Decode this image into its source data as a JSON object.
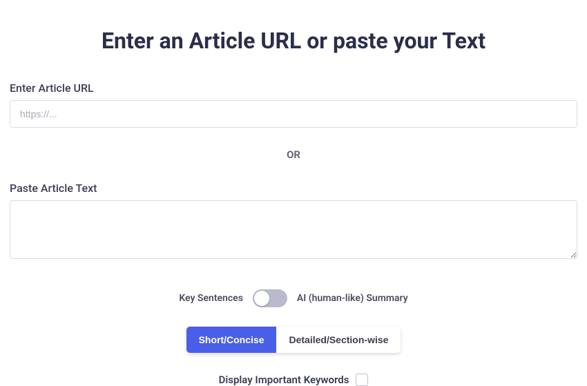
{
  "heading": "Enter an Article URL or paste your Text",
  "url_field": {
    "label": "Enter Article URL",
    "placeholder": "https://...",
    "value": ""
  },
  "divider_text": "OR",
  "text_field": {
    "label": "Paste Article Text",
    "value": ""
  },
  "toggle": {
    "left_label": "Key Sentences",
    "right_label": "AI (human-like) Summary",
    "state": "left"
  },
  "segment": {
    "options": [
      "Short/Concise",
      "Detailed/Section-wise"
    ],
    "active_index": 0
  },
  "checkbox": {
    "label": "Display Important Keywords",
    "checked": false
  },
  "colors": {
    "heading_color": "#2b2e4a",
    "active_segment_bg": "#4a5fe8",
    "toggle_bg": "#b8bbce",
    "border_color": "#dcdde3"
  }
}
